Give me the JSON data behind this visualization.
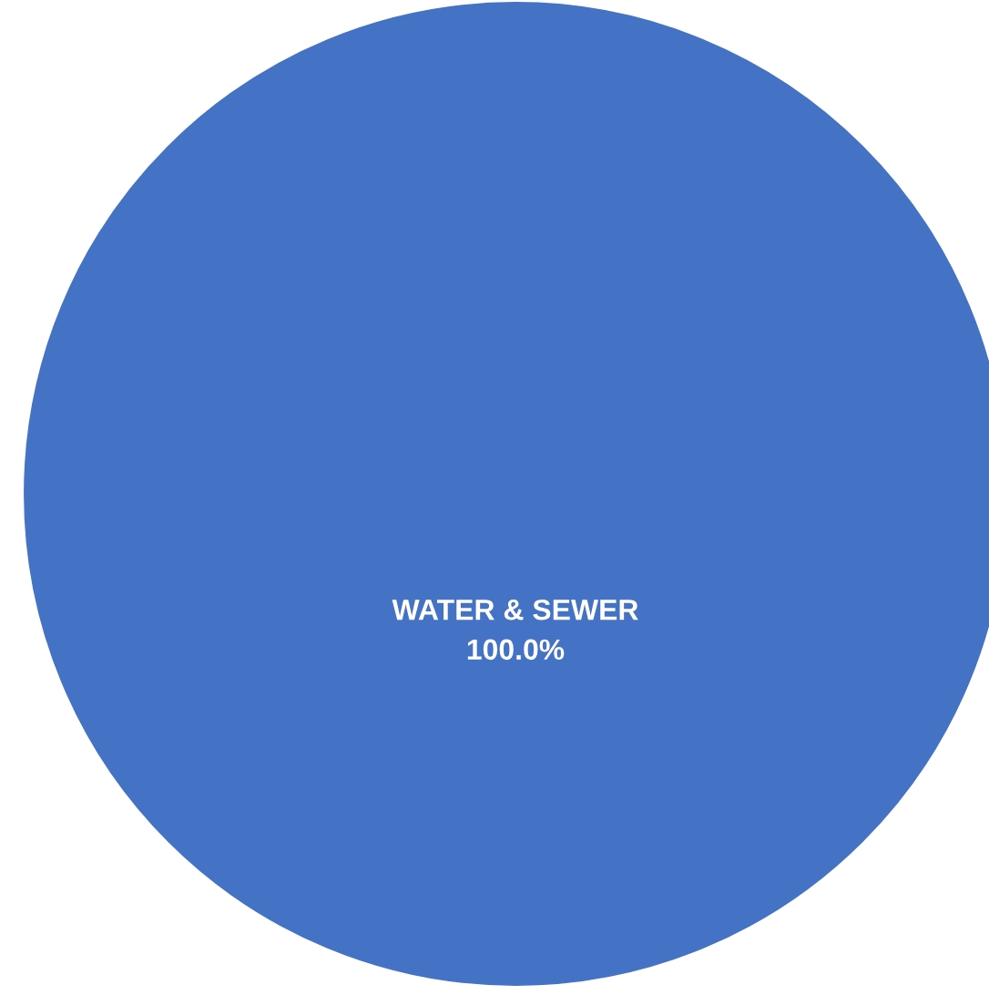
{
  "chart_data": {
    "type": "pie",
    "categories": [
      "WATER & SEWER"
    ],
    "values": [
      100
    ],
    "colors": [
      "#4472c4"
    ],
    "value_labels": [
      "100.0%"
    ],
    "legend": false
  }
}
